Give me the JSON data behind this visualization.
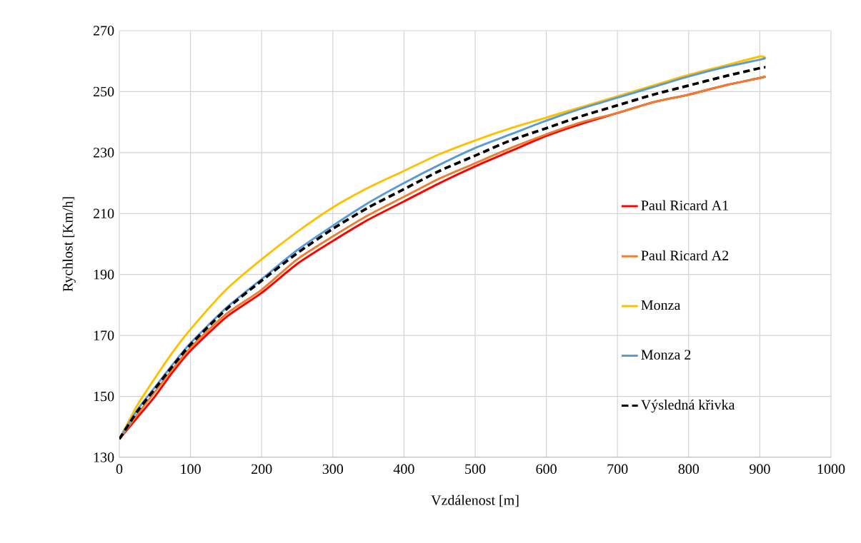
{
  "chart_data": {
    "type": "line",
    "xlabel": "Vzdálenost [m]",
    "ylabel": "Rychlost [Km/h]",
    "x": [
      0,
      25,
      50,
      75,
      100,
      150,
      200,
      250,
      300,
      350,
      400,
      450,
      500,
      550,
      600,
      650,
      700,
      750,
      800,
      850,
      900,
      908
    ],
    "series": [
      {
        "name": "Paul Ricard A1",
        "color": "#ff0000",
        "line_style": "solid",
        "values": [
          136,
          143,
          150,
          158,
          165,
          176,
          184,
          193.5,
          201,
          208,
          214,
          220,
          225.5,
          230.5,
          235.5,
          239.5,
          243,
          246.5,
          249,
          252,
          254.5,
          255
        ]
      },
      {
        "name": "Paul Ricard A2",
        "color": "#ed7d31",
        "line_style": "solid",
        "values": [
          136,
          144,
          151.5,
          159,
          166,
          177,
          185,
          195,
          202.5,
          209.5,
          215.5,
          221.5,
          226.5,
          231.5,
          236,
          240,
          243,
          246.5,
          249,
          252,
          254.5,
          255
        ]
      },
      {
        "name": "Monza",
        "color": "#ffc000",
        "line_style": "solid",
        "values": [
          136,
          147,
          156,
          164.5,
          172,
          185,
          195,
          204,
          212,
          218.5,
          224,
          229.5,
          234,
          238,
          241.5,
          245,
          248.5,
          252,
          255.5,
          258.5,
          261.5,
          261
        ]
      },
      {
        "name": "Monza 2",
        "color": "#5b9bd5",
        "line_style": "solid",
        "values": [
          136,
          145.5,
          153,
          160.5,
          167.5,
          179,
          188.5,
          198,
          206,
          213.5,
          220,
          226,
          231.5,
          236,
          240.5,
          244.5,
          248,
          251.5,
          255,
          258,
          260.5,
          261
        ]
      },
      {
        "name": "Výsledná křivka",
        "color": "#000000",
        "line_style": "dashed",
        "values": [
          136,
          145,
          152.5,
          160,
          167,
          178.5,
          188,
          197,
          205,
          212,
          218,
          224,
          229,
          234,
          238,
          242,
          245.5,
          249,
          252,
          255,
          257.7,
          258
        ]
      }
    ],
    "xlim": [
      0,
      1000
    ],
    "xticks": [
      0,
      100,
      200,
      300,
      400,
      500,
      600,
      700,
      800,
      900,
      1000
    ],
    "ylim": [
      130,
      270
    ],
    "yticks": [
      130,
      150,
      170,
      190,
      210,
      230,
      250,
      270
    ],
    "grid": true,
    "legend": "right",
    "marker": "none"
  }
}
